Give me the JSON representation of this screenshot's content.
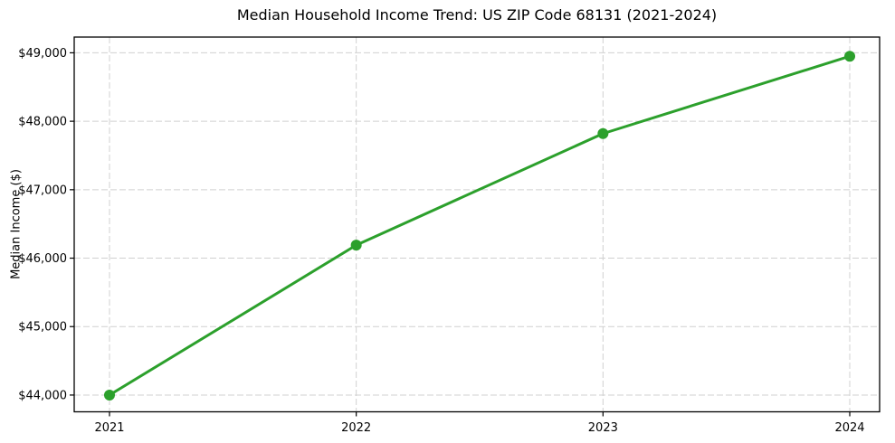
{
  "figure": {
    "background_color": "#ffffff"
  },
  "chart_data": {
    "type": "line",
    "title": "Median Household Income Trend: US ZIP Code 68131 (2021-2024)",
    "xlabel": "",
    "ylabel": "Median Income ($)",
    "x": [
      2021,
      2022,
      2023,
      2024
    ],
    "x_tick_labels": [
      "2021",
      "2022",
      "2023",
      "2024"
    ],
    "series": [
      {
        "name": "Median Household Income",
        "values": [
          44000,
          46190,
          47820,
          48950
        ],
        "color": "#2ca02c",
        "marker": "circle",
        "line_width": 3,
        "marker_radius": 6
      }
    ],
    "y_ticks": [
      44000,
      45000,
      46000,
      47000,
      48000,
      49000
    ],
    "y_tick_labels": [
      "$44,000",
      "$45,000",
      "$46,000",
      "$47,000",
      "$48,000",
      "$49,000"
    ],
    "xlim": [
      2020.857,
      2024.121
    ],
    "ylim": [
      43755,
      49230
    ],
    "grid": "dashed",
    "grid_color": "#d0d0d0",
    "axis_color": "#000000",
    "legend_position": "none"
  }
}
